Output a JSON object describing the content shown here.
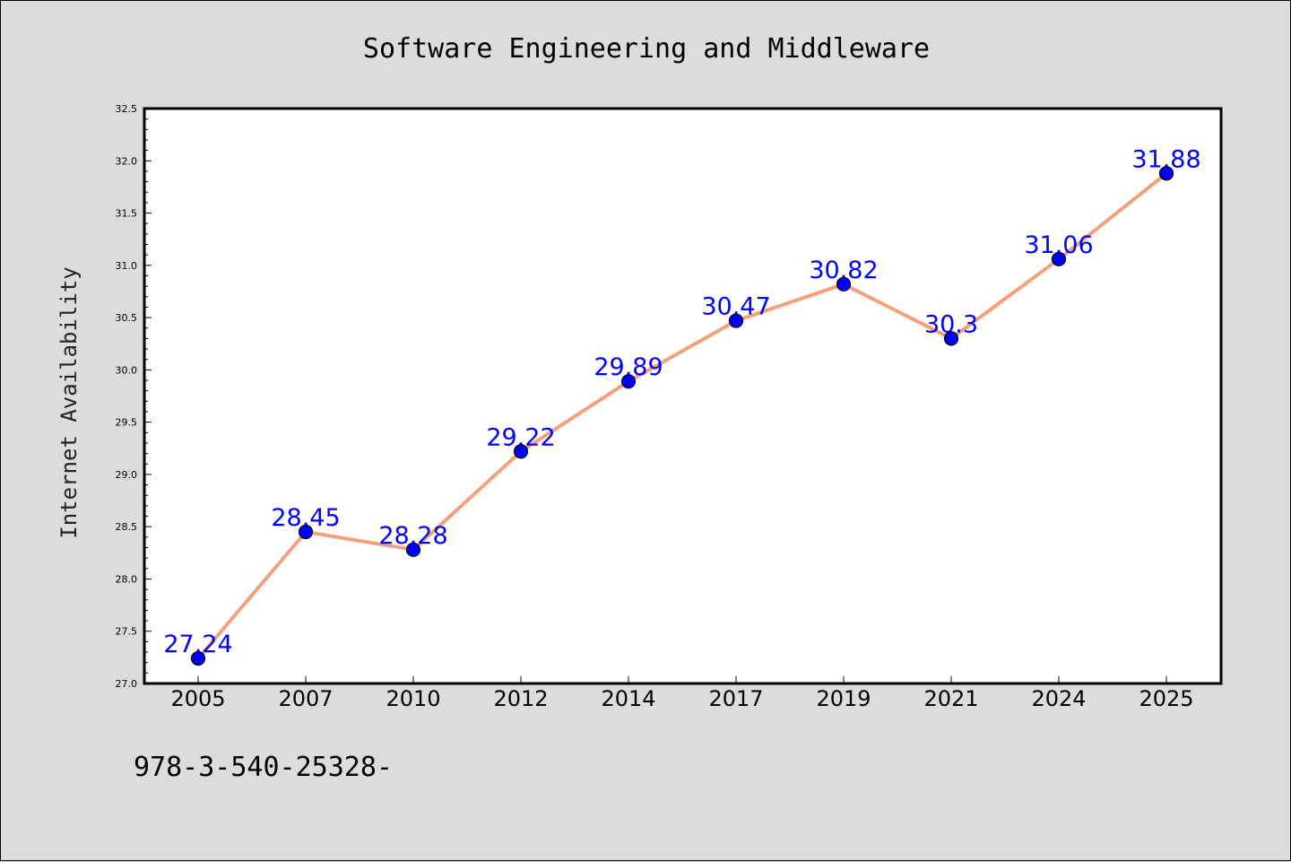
{
  "chart_data": {
    "type": "line",
    "title": "Software Engineering and Middleware",
    "xlabel": "",
    "ylabel": "Internet Availability",
    "categories": [
      "2005",
      "2007",
      "2010",
      "2012",
      "2014",
      "2017",
      "2019",
      "2021",
      "2024",
      "2025"
    ],
    "series": [
      {
        "values": [
          27.24,
          28.45,
          28.28,
          29.22,
          29.89,
          30.47,
          30.82,
          30.3,
          31.06,
          31.88
        ],
        "data_labels": [
          "27.24",
          "28.45",
          "28.28",
          "29.22",
          "29.89",
          "30.47",
          "30.82",
          "30.3",
          "31.06",
          "31.88"
        ],
        "line_color": "#f4a07a",
        "marker_color": "#0000ff",
        "label_color": "#0000ff"
      }
    ],
    "ylim": [
      27.0,
      32.5
    ],
    "yticks": [
      "27.0",
      "27.5",
      "28.0",
      "28.5",
      "29.0",
      "29.5",
      "30.0",
      "30.5",
      "31.0",
      "31.5",
      "32.0",
      "32.5"
    ],
    "grid": false,
    "legend": "none",
    "background": "#dcdcdc",
    "plot_background": "#ffffff"
  },
  "footnote": "978-3-540-25328-"
}
